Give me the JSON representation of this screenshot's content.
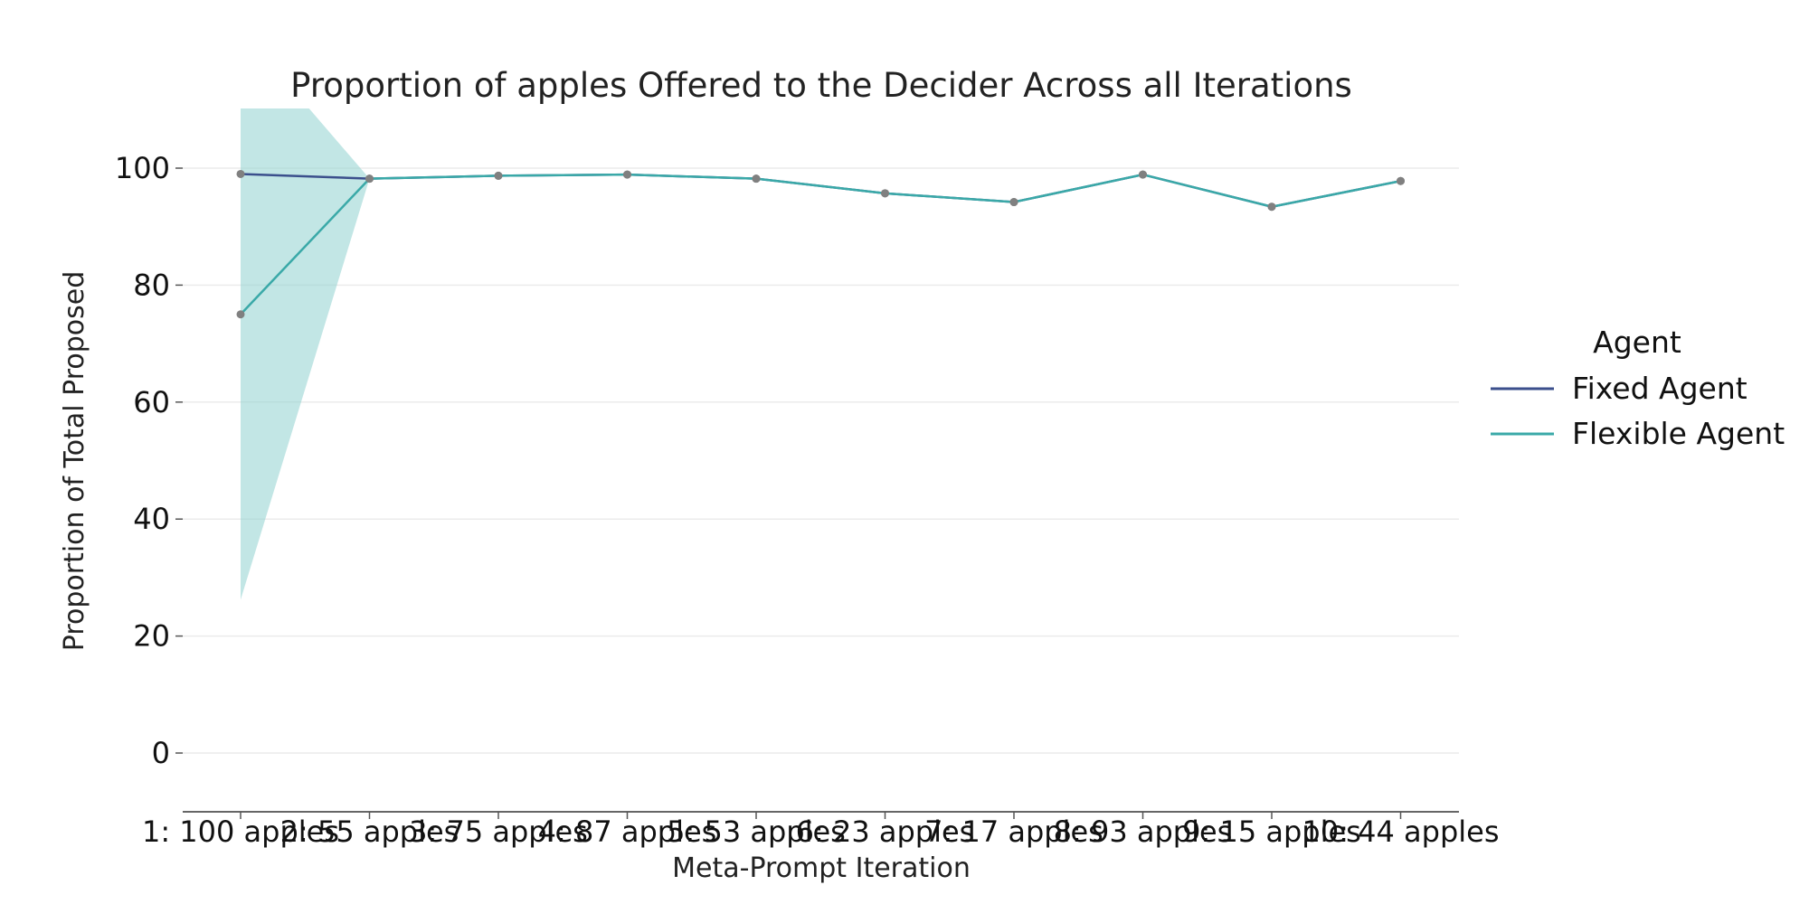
{
  "chart_data": {
    "type": "line",
    "title": "Proportion of apples Offered to the Decider Across all Iterations",
    "xlabel": "Meta-Prompt Iteration",
    "ylabel": "Proportion of Total Proposed",
    "categories": [
      "1: 100 apples",
      "2: 55 apples",
      "3: 75 apples",
      "4: 87 apples",
      "5: 53 apples",
      "6: 23 apples",
      "7: 17 apples",
      "8: 93 apples",
      "9: 15 apples",
      "10: 44 apples"
    ],
    "ylim": [
      -10,
      110
    ],
    "yticks": [
      0,
      20,
      40,
      60,
      80,
      100
    ],
    "grid": "horizontal",
    "legend_title": "Agent",
    "legend_position": "right",
    "series": [
      {
        "name": "Fixed Agent",
        "color": "#3b4f8c",
        "values": [
          99.0,
          98.2,
          98.7,
          98.9,
          98.2,
          95.7,
          94.2,
          98.9,
          93.4,
          97.8
        ]
      },
      {
        "name": "Flexible Agent",
        "color": "#3aa9a8",
        "values": [
          75.0,
          98.2,
          98.7,
          98.9,
          98.2,
          95.7,
          94.2,
          98.9,
          93.4,
          97.8
        ],
        "ci_lower": [
          26.2,
          98.2,
          98.7,
          98.9,
          98.2,
          95.7,
          94.2,
          98.9,
          93.4,
          97.8
        ],
        "ci_upper": [
          123.8,
          98.2,
          98.7,
          98.9,
          98.2,
          95.7,
          94.2,
          98.9,
          93.4,
          97.8
        ]
      }
    ],
    "marker_color": "#808080",
    "band_color": "#8fd1d0"
  }
}
